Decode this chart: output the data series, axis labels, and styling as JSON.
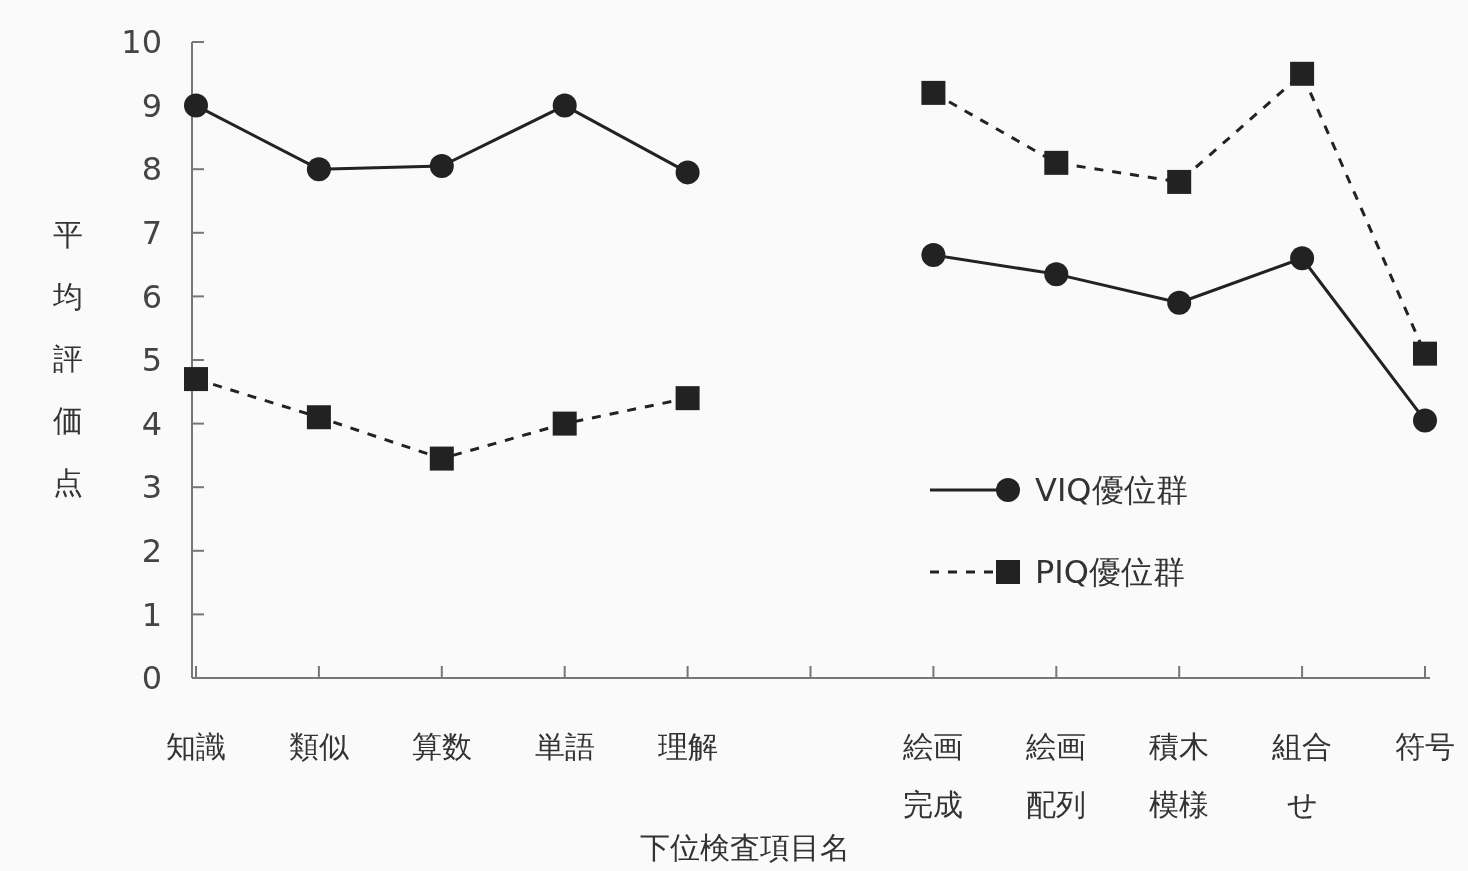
{
  "chart_data": {
    "type": "line",
    "xlabel": "下位検査項目名",
    "ylabel": "平均評価点",
    "categories": [
      "知識",
      "類似",
      "算数",
      "単語",
      "理解",
      null,
      "絵画完成",
      "絵画配列",
      "積木模様",
      "組合せ",
      "符号"
    ],
    "series": [
      {
        "name": "VIQ優位群",
        "color": "#222222",
        "marker": "circle",
        "line_style": "solid",
        "values": [
          9.0,
          8.0,
          8.05,
          9.0,
          7.95,
          null,
          6.65,
          6.35,
          5.9,
          6.6,
          4.05
        ]
      },
      {
        "name": "PIQ優位群",
        "color": "#222222",
        "marker": "square",
        "line_style": "dashed",
        "values": [
          4.7,
          4.1,
          3.45,
          4.0,
          4.4,
          null,
          9.2,
          8.1,
          7.8,
          9.5,
          5.1
        ]
      }
    ],
    "ylim": [
      0,
      10
    ],
    "yticks": [
      0,
      1,
      2,
      3,
      4,
      5,
      6,
      7,
      8,
      9,
      10
    ],
    "grid": false,
    "legend": "right"
  }
}
